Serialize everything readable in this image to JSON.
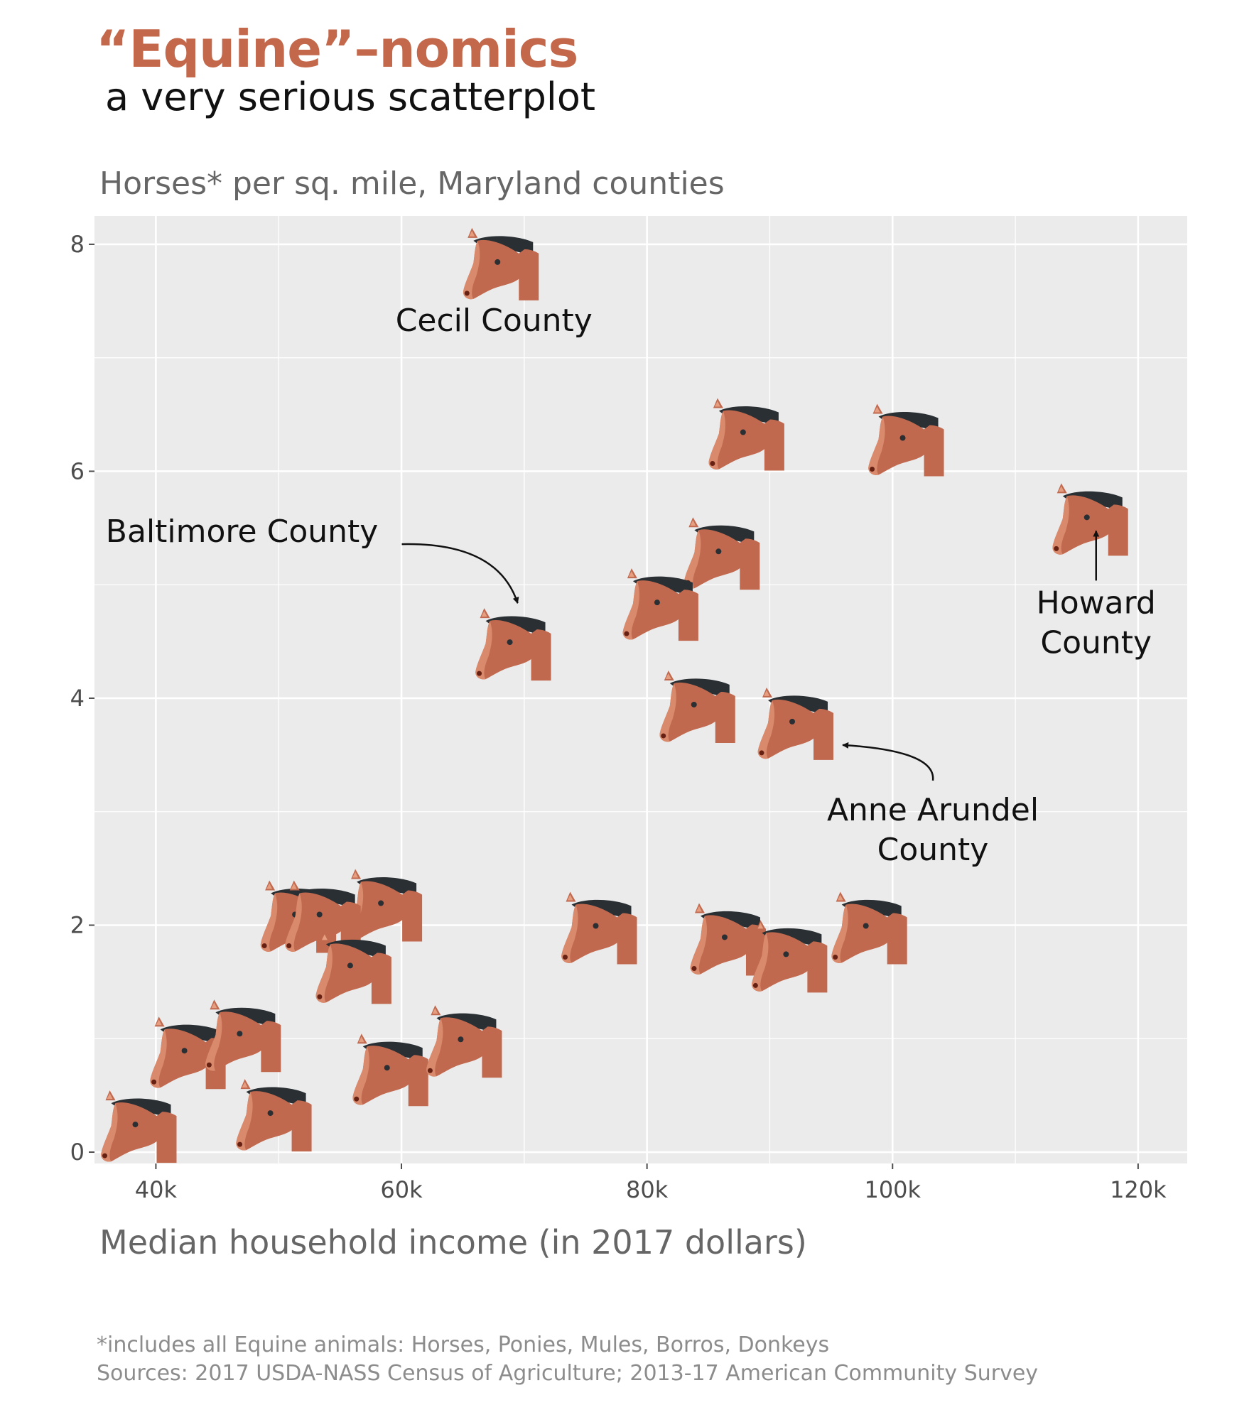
{
  "header": {
    "title": "“Equine”–nomics",
    "subtitle": "a very serious scatterplot"
  },
  "footer": {
    "note": "*includes all Equine animals: Horses, Ponies, Mules, Borros, Donkeys",
    "sources": "Sources: 2017 USDA-NASS Census of Agriculture; 2013-17 American Community Survey"
  },
  "colors": {
    "accent": "#c4684c",
    "panel": "#ebebeb",
    "grid": "#ffffff",
    "horse": "#c1694f",
    "mane": "#292f33"
  },
  "chart_data": {
    "type": "scatter",
    "marker": "horse-icon",
    "title": "",
    "ylabel": "Horses* per sq. mile, Maryland counties",
    "xlabel": "Median household income (in 2017 dollars)",
    "xlim": [
      35000,
      124000
    ],
    "ylim": [
      -0.1,
      8.25
    ],
    "xticks": [
      40000,
      60000,
      80000,
      100000,
      120000
    ],
    "xtick_labels": [
      "40k",
      "60k",
      "80k",
      "100k",
      "120k"
    ],
    "yticks": [
      0,
      2,
      4,
      6,
      8
    ],
    "ytick_labels": [
      "0",
      "2",
      "4",
      "6",
      "8"
    ],
    "grid": true,
    "points": [
      {
        "x": 68000,
        "y": 7.8,
        "label": "Cecil County"
      },
      {
        "x": 88000,
        "y": 6.3
      },
      {
        "x": 101000,
        "y": 6.25
      },
      {
        "x": 116000,
        "y": 5.55
      },
      {
        "x": 86000,
        "y": 5.25
      },
      {
        "x": 81000,
        "y": 4.8
      },
      {
        "x": 69000,
        "y": 4.45,
        "label": "Baltimore County"
      },
      {
        "x": 84000,
        "y": 3.9
      },
      {
        "x": 92000,
        "y": 3.75,
        "label": "Anne Arundel County"
      },
      {
        "x": 58500,
        "y": 2.15
      },
      {
        "x": 51500,
        "y": 2.05
      },
      {
        "x": 53500,
        "y": 2.05
      },
      {
        "x": 56000,
        "y": 1.6
      },
      {
        "x": 76000,
        "y": 1.95
      },
      {
        "x": 86500,
        "y": 1.85
      },
      {
        "x": 91500,
        "y": 1.7
      },
      {
        "x": 98000,
        "y": 1.95
      },
      {
        "x": 42500,
        "y": 0.85
      },
      {
        "x": 47000,
        "y": 1.0
      },
      {
        "x": 59000,
        "y": 0.7
      },
      {
        "x": 65000,
        "y": 0.95
      },
      {
        "x": 38500,
        "y": 0.2
      },
      {
        "x": 49500,
        "y": 0.3
      }
    ],
    "annotations": [
      {
        "label_lines": [
          "Cecil County"
        ],
        "target": 0
      },
      {
        "label_lines": [
          "Baltimore County"
        ],
        "target": 6
      },
      {
        "label_lines": [
          "Howard",
          "County"
        ],
        "target": 3
      },
      {
        "label_lines": [
          "Anne Arundel",
          "County"
        ],
        "target": 8
      }
    ]
  }
}
